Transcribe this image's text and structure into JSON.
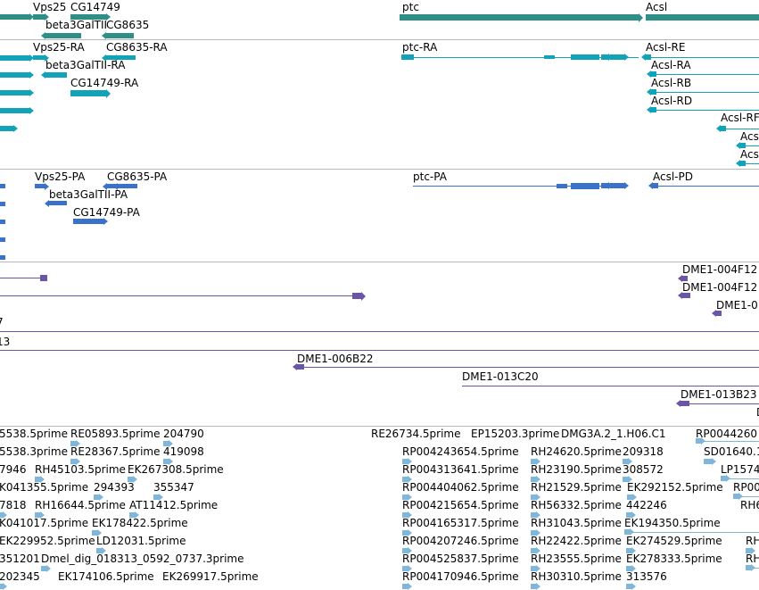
{
  "colors": {
    "gene": "#2f8f86",
    "mrna": "#12a3b8",
    "protein": "#3b72c9",
    "bac": "#6a55a6",
    "est": "#7fb6d9",
    "separator": "#b8b8b8"
  },
  "tracks": {
    "genes": {
      "labels": [
        {
          "text": "Vps25"
        },
        {
          "text": "CG14749"
        },
        {
          "text": "beta3GalTII"
        },
        {
          "text": "CG8635"
        },
        {
          "text": "ptc"
        },
        {
          "text": "Acsl"
        }
      ]
    },
    "transcripts": {
      "labels": [
        {
          "text": "Vps25-RA"
        },
        {
          "text": "CG8635-RA"
        },
        {
          "text": "beta3GalTII-RA"
        },
        {
          "text": "CG14749-RA"
        },
        {
          "text": "ptc-RA"
        },
        {
          "text": "Acsl-RE"
        },
        {
          "text": "Acsl-RA"
        },
        {
          "text": "Acsl-RB"
        },
        {
          "text": "Acsl-RD"
        },
        {
          "text": "Acsl-RF"
        },
        {
          "text": "Acsl"
        },
        {
          "text": "Acsl"
        }
      ]
    },
    "proteins": {
      "labels": [
        {
          "text": "Vps25-PA"
        },
        {
          "text": "CG8635-PA"
        },
        {
          "text": "beta3GalTII-PA"
        },
        {
          "text": "CG14749-PA"
        },
        {
          "text": "ptc-PA"
        },
        {
          "text": "Acsl-PD"
        }
      ]
    },
    "bacs": {
      "labels": [
        {
          "text": "DME1-004F12"
        },
        {
          "text": "DME1-004F12"
        },
        {
          "text": "DME1-0"
        },
        {
          "text": "7"
        },
        {
          "text": "13"
        },
        {
          "text": "DME1-006B22"
        },
        {
          "text": "DME1-013C20"
        },
        {
          "text": "DME1-013B23"
        },
        {
          "text": "D"
        }
      ]
    },
    "ests": {
      "labels": [
        {
          "text": "5538.5prime"
        },
        {
          "text": "RE05893.5prime"
        },
        {
          "text": "204790"
        },
        {
          "text": "RE26734.5prime"
        },
        {
          "text": "EP15203.3prime"
        },
        {
          "text": "DMG3A.2_1.H06.C1"
        },
        {
          "text": "RP0044260"
        },
        {
          "text": "5538.3prime"
        },
        {
          "text": "RE28367.5prime"
        },
        {
          "text": "419098"
        },
        {
          "text": "RP004243654.5prime"
        },
        {
          "text": "RH24620.5prime"
        },
        {
          "text": "209318"
        },
        {
          "text": "SD01640.1"
        },
        {
          "text": "7946"
        },
        {
          "text": "RH45103.5prime"
        },
        {
          "text": "EK267308.5prime"
        },
        {
          "text": "RP004313641.5prime"
        },
        {
          "text": "RH23190.5prime"
        },
        {
          "text": "308572"
        },
        {
          "text": "LP1574"
        },
        {
          "text": "K041355.5prime"
        },
        {
          "text": "294393"
        },
        {
          "text": "355347"
        },
        {
          "text": "RP004404062.5prime"
        },
        {
          "text": "RH21529.5prime"
        },
        {
          "text": "EK292152.5prime"
        },
        {
          "text": "RP004"
        },
        {
          "text": "7818"
        },
        {
          "text": "RH16644.5prime"
        },
        {
          "text": "AT11412.5prime"
        },
        {
          "text": "RP004215654.5prime"
        },
        {
          "text": "RH56332.5prime"
        },
        {
          "text": "442246"
        },
        {
          "text": "RH6"
        },
        {
          "text": "K041017.5prime"
        },
        {
          "text": "EK178422.5prime"
        },
        {
          "text": "RP004165317.5prime"
        },
        {
          "text": "RH31043.5prime"
        },
        {
          "text": "EK194350.5prime"
        },
        {
          "text": "EK229952.5prime"
        },
        {
          "text": "LD12031.5prime"
        },
        {
          "text": "RP004207246.5prime"
        },
        {
          "text": "RH22422.5prime"
        },
        {
          "text": "EK274529.5prime"
        },
        {
          "text": "RH"
        },
        {
          "text": "351201"
        },
        {
          "text": "Dmel_dig_018313_0592_0737.3prime"
        },
        {
          "text": "RP004525837.5prime"
        },
        {
          "text": "RH23555.5prime"
        },
        {
          "text": "EK278333.5prime"
        },
        {
          "text": "RH"
        },
        {
          "text": "202345"
        },
        {
          "text": "EK174106.5prime"
        },
        {
          "text": "EK269917.5prime"
        },
        {
          "text": "RP004170946.5prime"
        },
        {
          "text": "RH30310.5prime"
        },
        {
          "text": "313576"
        }
      ]
    }
  }
}
